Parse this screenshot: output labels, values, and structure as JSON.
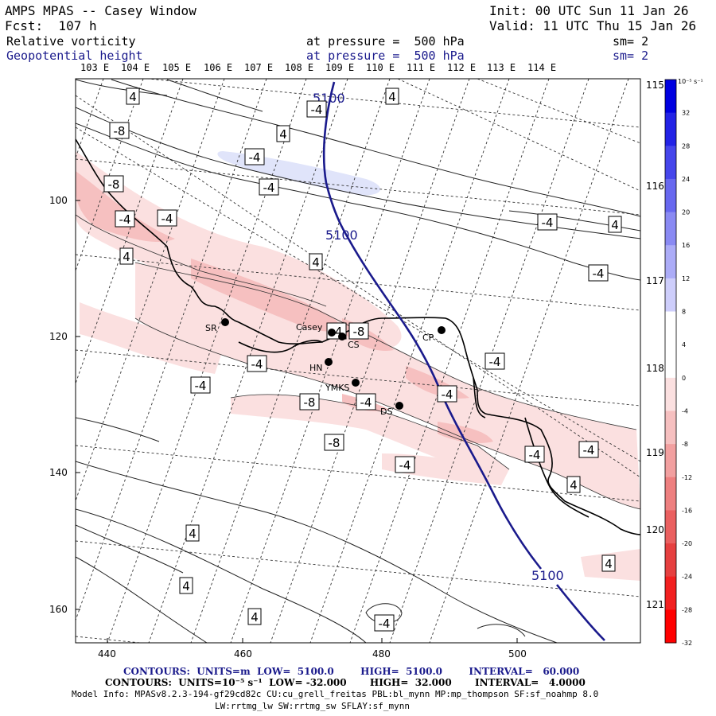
{
  "header": {
    "model_title": "AMPS MPAS -- Casey Window",
    "init": "Init: 00 UTC Sun 11 Jan 26",
    "forecast": "Fcst:  107 h",
    "valid": "Valid: 11 UTC Thu 15 Jan 26",
    "field1": {
      "name": "Relative vorticity",
      "level": "at pressure =  500 hPa",
      "smooth": "sm= 2"
    },
    "field2": {
      "name": "Geopotential height",
      "level": "at pressure =  500 hPa",
      "smooth": "sm= 2"
    }
  },
  "map": {
    "top_lon_labels": [
      "103 E",
      "104 E",
      "105 E",
      "106 E",
      "107 E",
      "108 E",
      "109 E",
      "110 E",
      "111 E",
      "112 E",
      "113 E",
      "114 E"
    ],
    "right_lon_labels": [
      "115 E",
      "116 E",
      "117 E",
      "118 E",
      "119 E",
      "120 E",
      "121 E"
    ],
    "x_ticks": [
      "440",
      "460",
      "480",
      "500"
    ],
    "y_ticks": [
      "100",
      "120",
      "140",
      "160"
    ],
    "stations": [
      "SR",
      "Casey",
      "CS",
      "CP",
      "HN",
      "YMKS",
      "DS"
    ],
    "height_labels": [
      "5100",
      "5100",
      "5100"
    ],
    "vort_labels": [
      "-4",
      "4",
      "4",
      "-8",
      "4",
      "-4",
      "-4",
      "-8",
      "-4",
      "-4",
      "-4",
      "4",
      "4",
      "4",
      "-4",
      "-8",
      "-4",
      "-4",
      "-4",
      "-4",
      "-8",
      "-4",
      "-4",
      "-8",
      "-4",
      "-4",
      "-4",
      "4",
      "4",
      "4",
      "4",
      "-4",
      "4"
    ]
  },
  "colorbar": {
    "units": "10⁻⁵ s⁻¹",
    "labels": [
      "32",
      "28",
      "24",
      "20",
      "16",
      "12",
      "8",
      "4",
      "0",
      "-4",
      "-8",
      "-12",
      "-16",
      "-20",
      "-24",
      "-28",
      "-32"
    ],
    "colors": [
      "#0000e0",
      "#2323e6",
      "#4646eb",
      "#6868ef",
      "#8a8af3",
      "#acacf7",
      "#ceceFB",
      "#ffffff",
      "#ffffff",
      "#fbe0e0",
      "#f6c0c0",
      "#f2a0a0",
      "#ee8080",
      "#ea6060",
      "#e64040",
      "#f22020",
      "#ff0000"
    ]
  },
  "footer": {
    "contours1": "CONTOURS:  UNITS=m  LOW=  5100.0        HIGH=  5100.0        INTERVAL=   60.000",
    "contours2": "CONTOURS:  UNITS=10⁻⁵ s⁻¹  LOW= -32.000       HIGH=  32.000       INTERVAL=   4.0000",
    "model_info": "Model Info: MPASv8.2.3-194-gf29cd82c CU:cu_grell_freitas PBL:bl_mynn MP:mp_thompson SF:sf_noahmp 8.0",
    "model_info2": "LW:rrtmg_lw SW:rrtmg_sw SFLAY:sf_mynn"
  }
}
